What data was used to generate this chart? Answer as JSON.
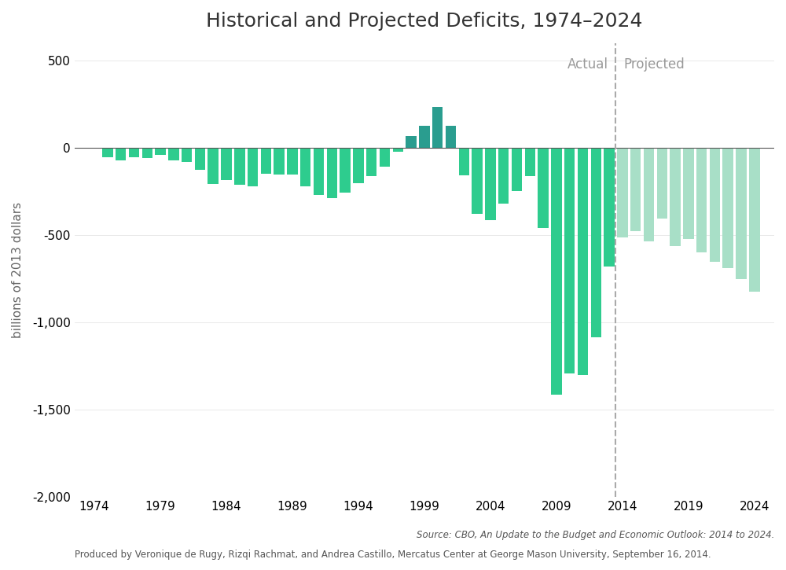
{
  "title": "Historical and Projected Deficits, 1974–2024",
  "ylabel": "billions of 2013 dollars",
  "years": [
    1974,
    1975,
    1976,
    1977,
    1978,
    1979,
    1980,
    1981,
    1982,
    1983,
    1984,
    1985,
    1986,
    1987,
    1988,
    1989,
    1990,
    1991,
    1992,
    1993,
    1994,
    1995,
    1996,
    1997,
    1998,
    1999,
    2000,
    2001,
    2002,
    2003,
    2004,
    2005,
    2006,
    2007,
    2008,
    2009,
    2010,
    2011,
    2012,
    2013,
    2014,
    2015,
    2016,
    2017,
    2018,
    2019,
    2020,
    2021,
    2022,
    2023,
    2024
  ],
  "values": [
    -6,
    -53,
    -74,
    -53,
    -59,
    -40,
    -73,
    -79,
    -128,
    -208,
    -185,
    -212,
    -221,
    -149,
    -155,
    -152,
    -221,
    -269,
    -290,
    -255,
    -203,
    -164,
    -107,
    -22,
    69,
    126,
    236,
    128,
    -158,
    -378,
    -413,
    -318,
    -248,
    -161,
    -459,
    -1413,
    -1294,
    -1300,
    -1087,
    -680,
    -514,
    -478,
    -534,
    -407,
    -563,
    -520,
    -600,
    -652,
    -687,
    -752,
    -822
  ],
  "actual_color": "#2ecc8e",
  "surplus_color": "#2a9d8f",
  "projected_color": "#a8dfc7",
  "divider_year": 2013.5,
  "ylim": [
    -2000,
    600
  ],
  "yticks": [
    -2000,
    -1500,
    -1000,
    -500,
    0,
    500
  ],
  "xticks": [
    1974,
    1979,
    1984,
    1989,
    1994,
    1999,
    2004,
    2009,
    2014,
    2019,
    2024
  ],
  "background_color": "#ffffff",
  "actual_label": "Actual",
  "projected_label": "Projected"
}
